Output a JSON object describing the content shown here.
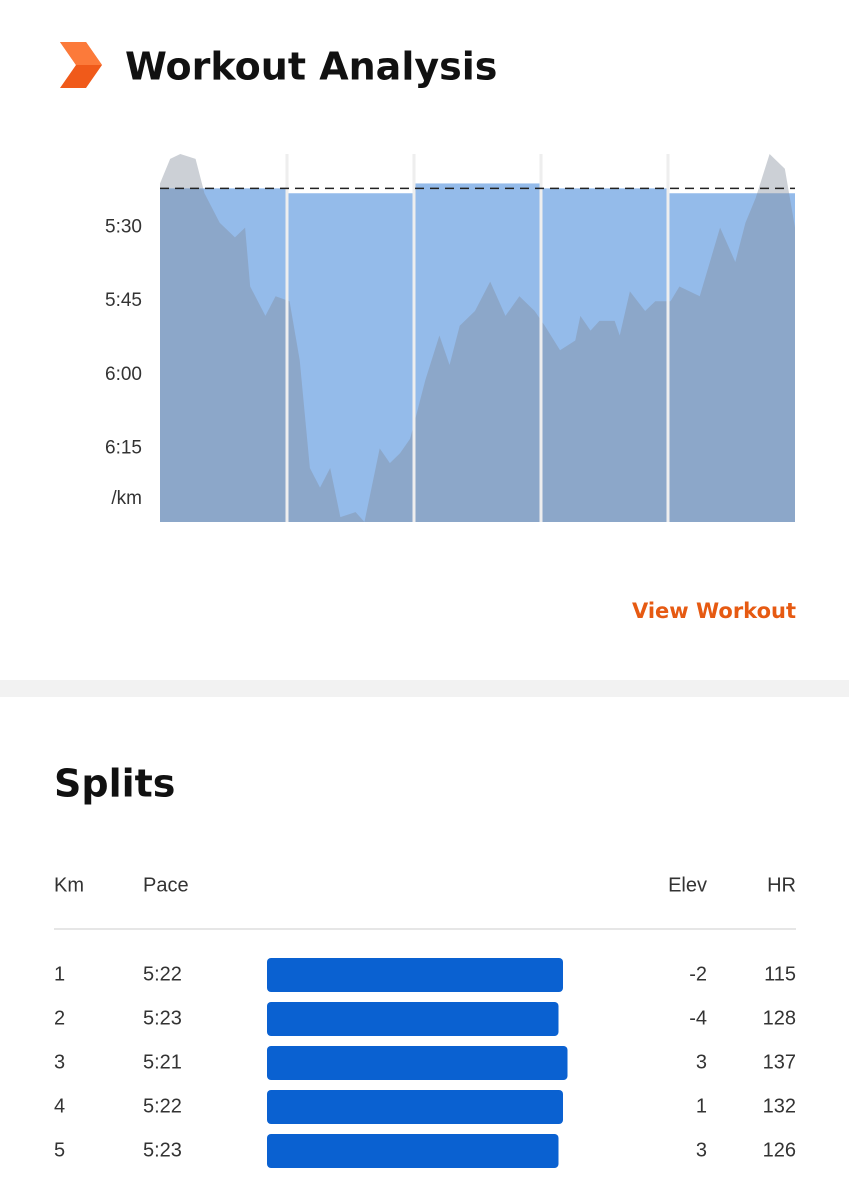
{
  "header": {
    "title": "Workout Analysis"
  },
  "chart_data": {
    "type": "bar",
    "ylabel": "/km",
    "xlim": [
      0,
      5
    ],
    "ylim": [
      390,
      315
    ],
    "yticks": [
      {
        "value": 330,
        "label": "5:30"
      },
      {
        "value": 345,
        "label": "5:45"
      },
      {
        "value": 360,
        "label": "6:00"
      },
      {
        "value": 375,
        "label": "6:15"
      }
    ],
    "average": 322,
    "series": [
      {
        "type": "bar",
        "color": "#94bbea",
        "values": [
          322,
          323,
          321,
          322,
          323
        ]
      },
      {
        "type": "area",
        "color": "#7f8a99",
        "x": [
          0.0,
          0.08,
          0.16,
          0.28,
          0.35,
          0.47,
          0.59,
          0.67,
          0.71,
          0.83,
          0.91,
          1.02,
          1.1,
          1.18,
          1.26,
          1.34,
          1.42,
          1.54,
          1.61,
          1.73,
          1.81,
          1.89,
          1.97,
          2.09,
          2.2,
          2.28,
          2.36,
          2.48,
          2.6,
          2.72,
          2.83,
          2.95,
          3.03,
          3.15,
          3.27,
          3.31,
          3.39,
          3.46,
          3.58,
          3.62,
          3.7,
          3.82,
          3.9,
          4.02,
          4.09,
          4.25,
          4.33,
          4.41,
          4.53,
          4.61,
          4.69,
          4.8,
          4.92,
          5.0
        ],
        "values": [
          321,
          316,
          315,
          316,
          323,
          329,
          332,
          330,
          342,
          348,
          344,
          345,
          357,
          379,
          383,
          379,
          389,
          388,
          390,
          375,
          378,
          376,
          373,
          361,
          352,
          358,
          350,
          347,
          341,
          348,
          344,
          347,
          350,
          355,
          353,
          348,
          351,
          349,
          349,
          352,
          343,
          347,
          345,
          345,
          342,
          344,
          337,
          330,
          337,
          329,
          324,
          315,
          318,
          330
        ]
      }
    ]
  },
  "link": "View Workout",
  "splits": {
    "title": "Splits",
    "headers": [
      "Km",
      "Pace",
      "Elev",
      "HR"
    ],
    "rows": [
      [
        1,
        "5:22",
        -2,
        115
      ],
      [
        2,
        "5:23",
        -4,
        128
      ],
      [
        3,
        "5:21",
        3,
        137
      ],
      [
        4,
        "5:22",
        1,
        132
      ],
      [
        5,
        "5:23",
        3,
        126
      ]
    ]
  }
}
